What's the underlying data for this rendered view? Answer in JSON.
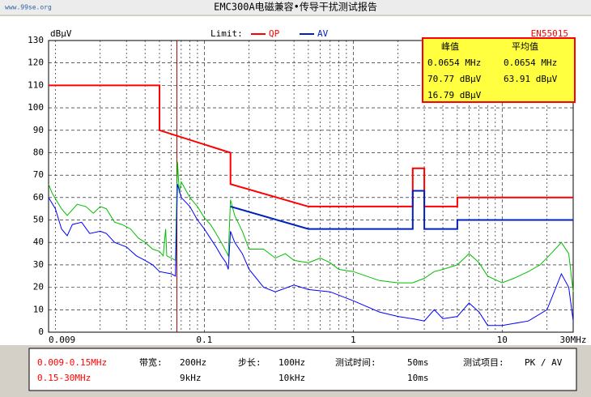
{
  "chart_data": {
    "type": "line",
    "title": "EMC300A电磁兼容•传导干扰测试报告",
    "watermark": "www.99se.org",
    "y_label": "dBμV",
    "legend_label": "Limit:",
    "standard": "EN55015",
    "log_x": true,
    "grid": true,
    "xlim": [
      0.009,
      30
    ],
    "ylim": [
      0,
      130
    ],
    "xticks": [
      0.009,
      0.1,
      1,
      10,
      {
        "value": 30,
        "label": "30MHz"
      }
    ],
    "yticks": [
      0,
      10,
      20,
      30,
      40,
      50,
      60,
      70,
      80,
      90,
      100,
      110,
      120,
      130
    ],
    "x_minor_grid": [
      0.01,
      0.02,
      0.03,
      0.04,
      0.05,
      0.06,
      0.07,
      0.08,
      0.09,
      0.2,
      0.3,
      0.4,
      0.5,
      0.6,
      0.7,
      0.8,
      0.9,
      2,
      3,
      4,
      5,
      6,
      7,
      8,
      9,
      20
    ],
    "series": [
      {
        "name": "QP",
        "color": "#ff0000",
        "x": [
          0.009,
          0.05,
          0.05,
          0.15,
          0.15,
          0.5,
          2.51,
          2.51,
          3,
          3,
          5,
          5,
          30
        ],
        "values": [
          110,
          110,
          90,
          80,
          66,
          56,
          56,
          73,
          73,
          56,
          56,
          60,
          60
        ]
      },
      {
        "name": "AV",
        "color": "#0020c0",
        "x": [
          0.15,
          0.5,
          2.51,
          2.51,
          3,
          3,
          5,
          5,
          30
        ],
        "values": [
          56,
          46,
          46,
          63,
          63,
          46,
          46,
          50,
          50
        ]
      }
    ],
    "traces": [
      {
        "color": "#00c000",
        "x": [
          0.009,
          0.0095,
          0.011,
          0.012,
          0.014,
          0.016,
          0.018,
          0.02,
          0.022,
          0.025,
          0.028,
          0.032,
          0.036,
          0.04,
          0.045,
          0.05,
          0.053,
          0.055,
          0.056,
          0.06,
          0.064,
          0.066,
          0.068,
          0.07,
          0.08,
          0.09,
          0.1,
          0.11,
          0.12,
          0.13,
          0.14,
          0.145,
          0.15,
          0.16,
          0.18,
          0.2,
          0.25,
          0.3,
          0.35,
          0.4,
          0.5,
          0.6,
          0.7,
          0.8,
          1,
          1.5,
          2,
          2.5,
          3,
          3.5,
          4,
          5,
          6,
          7,
          8,
          10,
          12,
          15,
          18,
          22,
          25,
          28,
          30
        ],
        "values": [
          66,
          62,
          55,
          52,
          57,
          56,
          53,
          56,
          55,
          49,
          48,
          46,
          42,
          40,
          37,
          36,
          34,
          46,
          34,
          33,
          32,
          76,
          62,
          67,
          60,
          56,
          51,
          48,
          44,
          40,
          36,
          34,
          59,
          52,
          45,
          37,
          37,
          33,
          35,
          32,
          31,
          33,
          31,
          28,
          27,
          23,
          22,
          22,
          24,
          27,
          28,
          30,
          35,
          31,
          25,
          22,
          24,
          27,
          30,
          36,
          40,
          35,
          18
        ]
      },
      {
        "color": "#0000ff",
        "x": [
          0.009,
          0.01,
          0.011,
          0.012,
          0.013,
          0.015,
          0.017,
          0.02,
          0.022,
          0.025,
          0.03,
          0.035,
          0.04,
          0.045,
          0.05,
          0.06,
          0.064,
          0.066,
          0.07,
          0.08,
          0.09,
          0.1,
          0.12,
          0.13,
          0.14,
          0.145,
          0.15,
          0.16,
          0.18,
          0.2,
          0.25,
          0.3,
          0.4,
          0.5,
          0.7,
          1,
          1.5,
          2,
          2.5,
          3,
          3.5,
          4,
          5,
          6,
          7,
          8,
          10,
          15,
          20,
          25,
          28,
          30
        ],
        "values": [
          60,
          55,
          46,
          43,
          48,
          49,
          44,
          45,
          44,
          40,
          38,
          34,
          32,
          30,
          27,
          26,
          25,
          66,
          60,
          56,
          50,
          46,
          38,
          34,
          31,
          28,
          45,
          40,
          35,
          28,
          20,
          18,
          21,
          19,
          18,
          14,
          9,
          7,
          6,
          5,
          10,
          6,
          7,
          13,
          9,
          3,
          3,
          5,
          10,
          26,
          20,
          5
        ]
      }
    ],
    "marker_x": 0.0654,
    "marker_color": "#a00000",
    "readout": {
      "headers": [
        "峰值",
        "平均值"
      ],
      "rows": [
        [
          "0.0654 MHz",
          "0.0654 MHz"
        ],
        [
          "70.77 dBμV",
          "63.91 dBμV"
        ],
        [
          "16.79 dBμV"
        ]
      ]
    },
    "settings": {
      "ranges": [
        "0.009-0.15MHz",
        "0.15-30MHz"
      ],
      "bandwidth": {
        "label": "带宽:",
        "values": [
          "200Hz",
          "9kHz"
        ]
      },
      "step": {
        "label": "步长:",
        "values": [
          "100Hz",
          "10kHz"
        ]
      },
      "time": {
        "label": "测试时间:",
        "values": [
          "50ms",
          "10ms"
        ]
      },
      "item": {
        "label": "测试项目:",
        "value": "PK / AV"
      }
    }
  }
}
